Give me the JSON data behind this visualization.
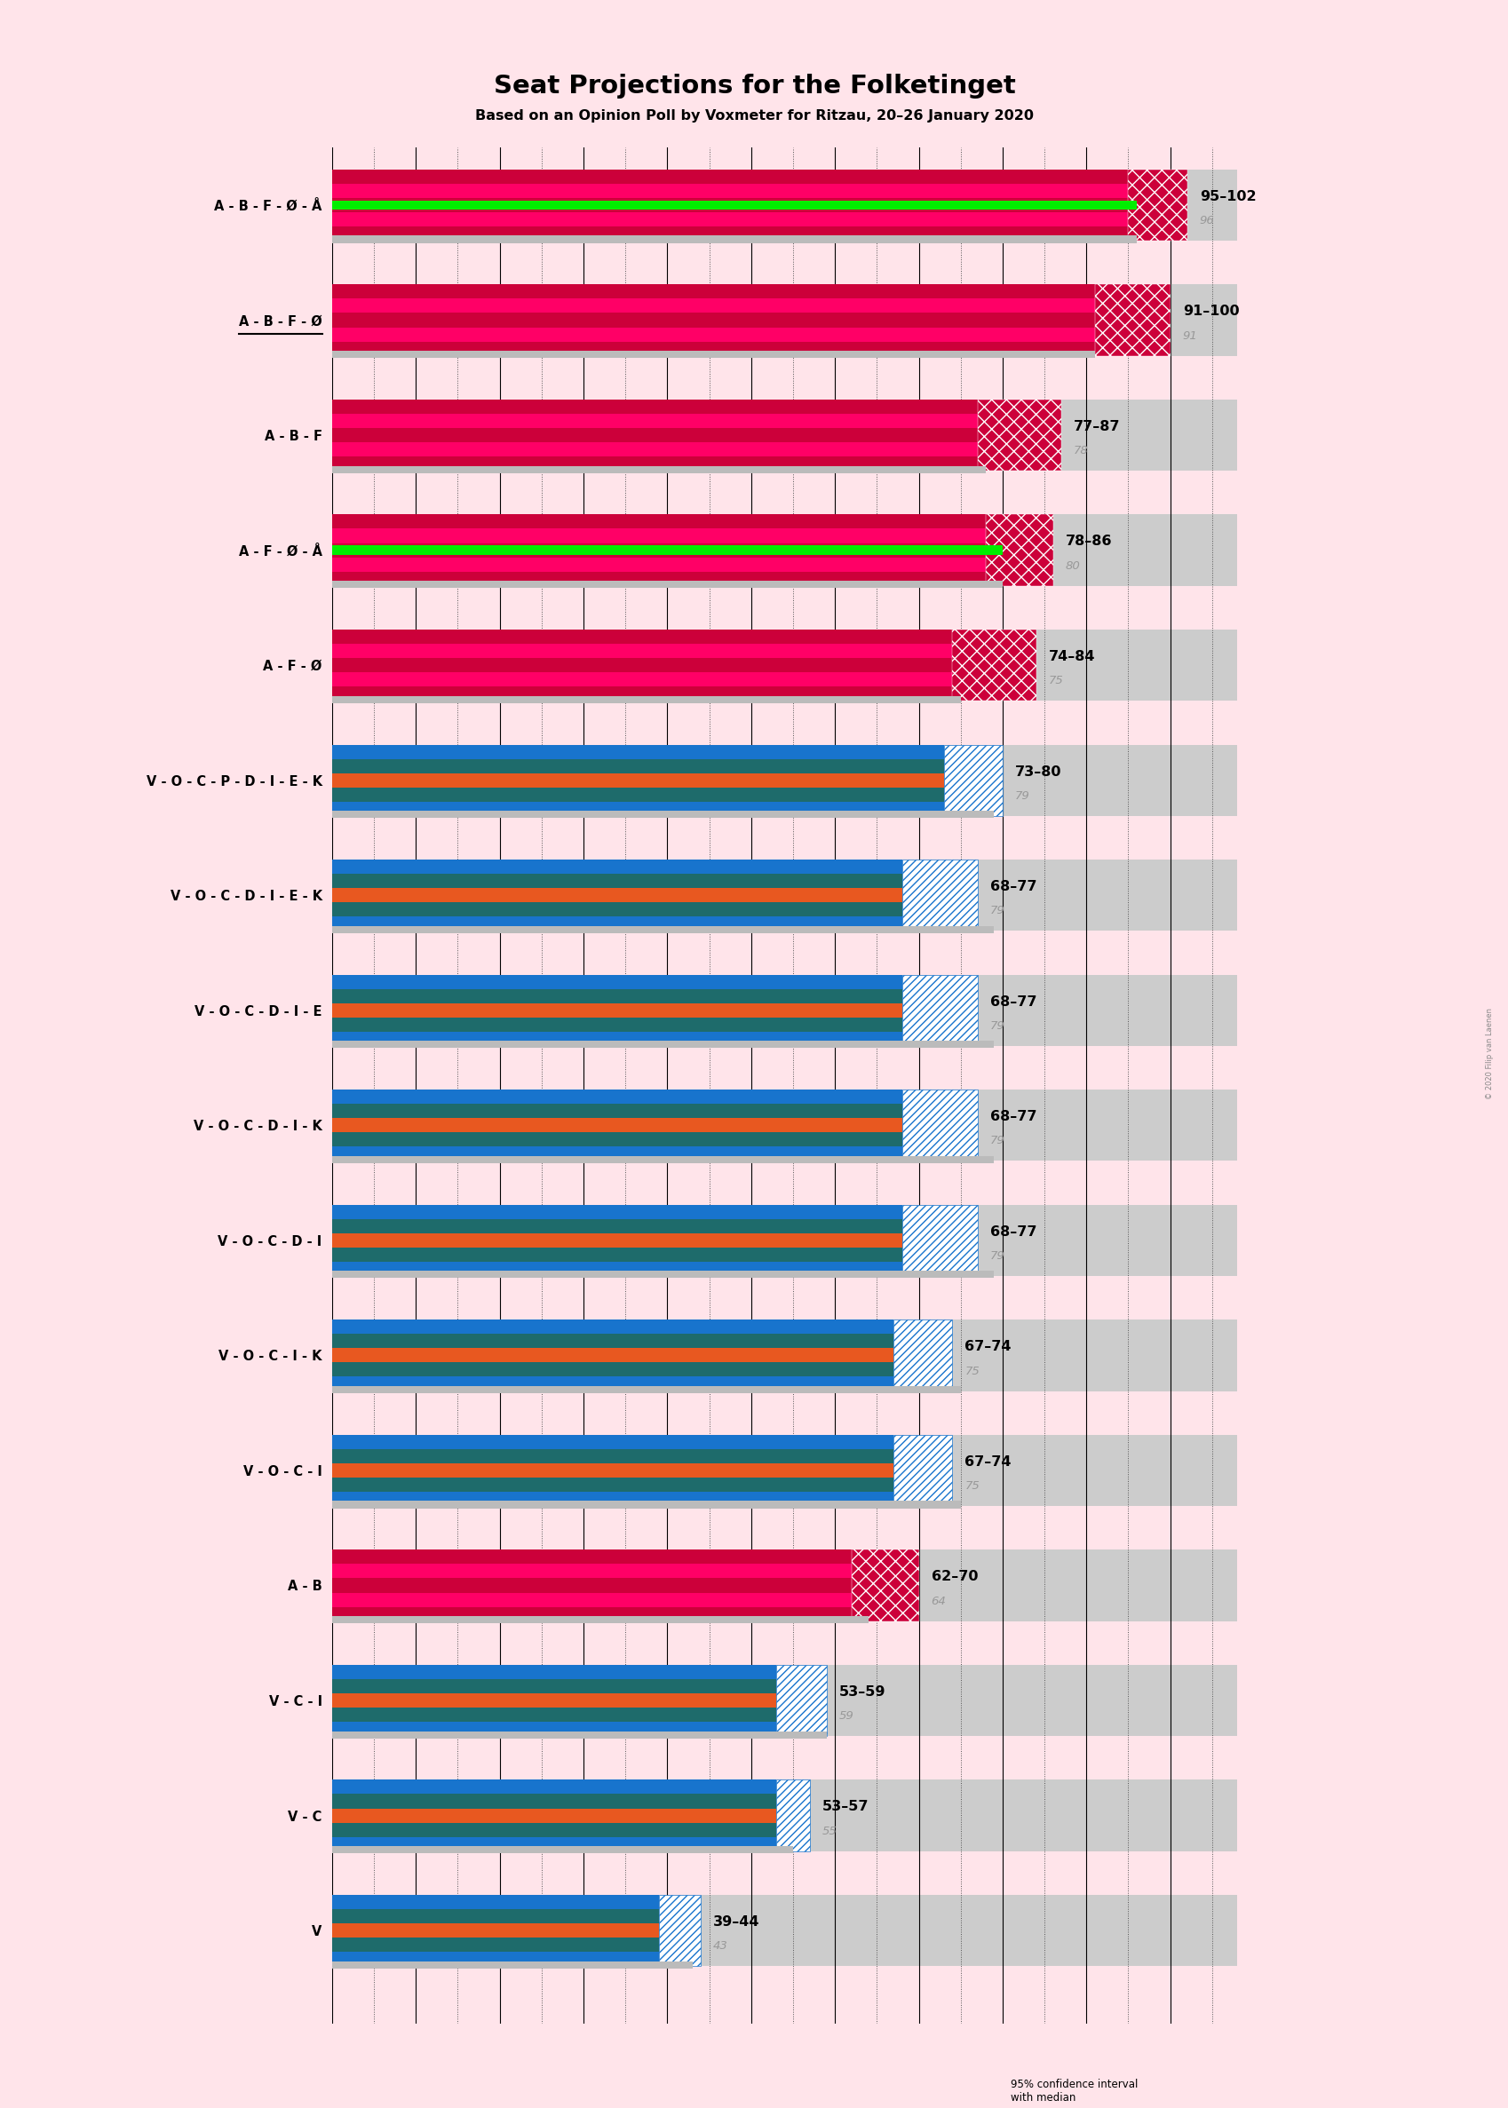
{
  "title": "Seat Projections for the Folketinget",
  "subtitle": "Based on an Opinion Poll by Voxmeter for Ritzau, 20–26 January 2020",
  "background_color": "#FFE4EA",
  "bar_area_bg": "#CCCCCC",
  "grid_line_color": "#999999",
  "x_max": 108,
  "coalitions": [
    {
      "label": "A - B - F - Ø - Å",
      "bar_low": 95,
      "bar_high": 102,
      "last_result": 96,
      "underline": false,
      "has_green": true,
      "green_val": 96,
      "type": "red"
    },
    {
      "label": "A - B - F - Ø",
      "bar_low": 91,
      "bar_high": 100,
      "last_result": 91,
      "underline": true,
      "has_green": false,
      "type": "red"
    },
    {
      "label": "A - B - F",
      "bar_low": 77,
      "bar_high": 87,
      "last_result": 78,
      "underline": false,
      "has_green": false,
      "type": "red"
    },
    {
      "label": "A - F - Ø - Å",
      "bar_low": 78,
      "bar_high": 86,
      "last_result": 80,
      "underline": false,
      "has_green": true,
      "green_val": 80,
      "type": "red"
    },
    {
      "label": "A - F - Ø",
      "bar_low": 74,
      "bar_high": 84,
      "last_result": 75,
      "underline": false,
      "has_green": false,
      "type": "red"
    },
    {
      "label": "V - O - C - P - D - I - E - K",
      "bar_low": 73,
      "bar_high": 80,
      "last_result": 79,
      "underline": false,
      "has_green": false,
      "type": "blue"
    },
    {
      "label": "V - O - C - D - I - E - K",
      "bar_low": 68,
      "bar_high": 77,
      "last_result": 79,
      "underline": false,
      "has_green": false,
      "type": "blue"
    },
    {
      "label": "V - O - C - D - I - E",
      "bar_low": 68,
      "bar_high": 77,
      "last_result": 79,
      "underline": false,
      "has_green": false,
      "type": "blue"
    },
    {
      "label": "V - O - C - D - I - K",
      "bar_low": 68,
      "bar_high": 77,
      "last_result": 79,
      "underline": false,
      "has_green": false,
      "type": "blue"
    },
    {
      "label": "V - O - C - D - I",
      "bar_low": 68,
      "bar_high": 77,
      "last_result": 79,
      "underline": false,
      "has_green": false,
      "type": "blue"
    },
    {
      "label": "V - O - C - I - K",
      "bar_low": 67,
      "bar_high": 74,
      "last_result": 75,
      "underline": false,
      "has_green": false,
      "type": "blue"
    },
    {
      "label": "V - O - C - I",
      "bar_low": 67,
      "bar_high": 74,
      "last_result": 75,
      "underline": false,
      "has_green": false,
      "type": "blue"
    },
    {
      "label": "A - B",
      "bar_low": 62,
      "bar_high": 70,
      "last_result": 64,
      "underline": false,
      "has_green": false,
      "type": "red"
    },
    {
      "label": "V - C - I",
      "bar_low": 53,
      "bar_high": 59,
      "last_result": 59,
      "underline": false,
      "has_green": false,
      "type": "blue"
    },
    {
      "label": "V - C",
      "bar_low": 53,
      "bar_high": 57,
      "last_result": 55,
      "underline": false,
      "has_green": false,
      "type": "blue"
    },
    {
      "label": "V",
      "bar_low": 39,
      "bar_high": 44,
      "last_result": 43,
      "underline": false,
      "has_green": false,
      "type": "blue"
    }
  ],
  "red_stripes": [
    "#CC003A",
    "#FF0066",
    "#CC003A",
    "#FF0066",
    "#CC003A"
  ],
  "blue_stripes": [
    "#1874CD",
    "#1E6B6B",
    "#E85820",
    "#1E6B6B",
    "#1874CD"
  ],
  "green_color": "#00EE00",
  "hatch_red_face": "#CC003A",
  "hatch_blue_face": "#FFFFFF",
  "last_result_color": "#BBBBBB"
}
